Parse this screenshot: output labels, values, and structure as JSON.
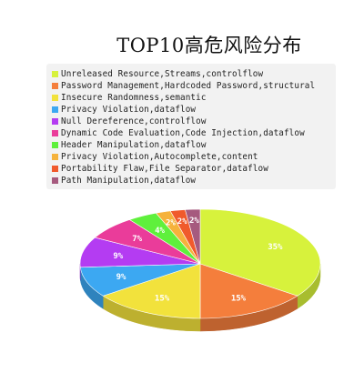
{
  "chart_data": {
    "type": "pie",
    "title": "TOP10高危风险分布",
    "legend_position": "top",
    "series": [
      {
        "name": "Unreleased Resource,Streams,controlflow",
        "value": 35,
        "label": "35%",
        "color": "#d7f23c"
      },
      {
        "name": "Password Management,Hardcoded Password,structural",
        "value": 15,
        "label": "15%",
        "color": "#f47e3c"
      },
      {
        "name": "Insecure Randomness,semantic",
        "value": 15,
        "label": "15%",
        "color": "#f2e23c"
      },
      {
        "name": "Privacy Violation,dataflow",
        "value": 9,
        "label": "9%",
        "color": "#3ca8f2"
      },
      {
        "name": "Null Dereference,controlflow",
        "value": 9,
        "label": "9%",
        "color": "#b43cf2"
      },
      {
        "name": "Dynamic Code Evaluation,Code Injection,dataflow",
        "value": 7,
        "label": "7%",
        "color": "#ea3c9a"
      },
      {
        "name": "Header Manipulation,dataflow",
        "value": 4,
        "label": "4%",
        "color": "#5ff03c"
      },
      {
        "name": "Privacy Violation,Autocomplete,content",
        "value": 2,
        "label": "2%",
        "color": "#f5b23c"
      },
      {
        "name": "Portability Flaw,File Separator,dataflow",
        "value": 2,
        "label": "2%",
        "color": "#f05a2c"
      },
      {
        "name": "Path Manipulation,dataflow",
        "value": 2,
        "label": "2%",
        "color": "#a65a7e"
      }
    ]
  }
}
